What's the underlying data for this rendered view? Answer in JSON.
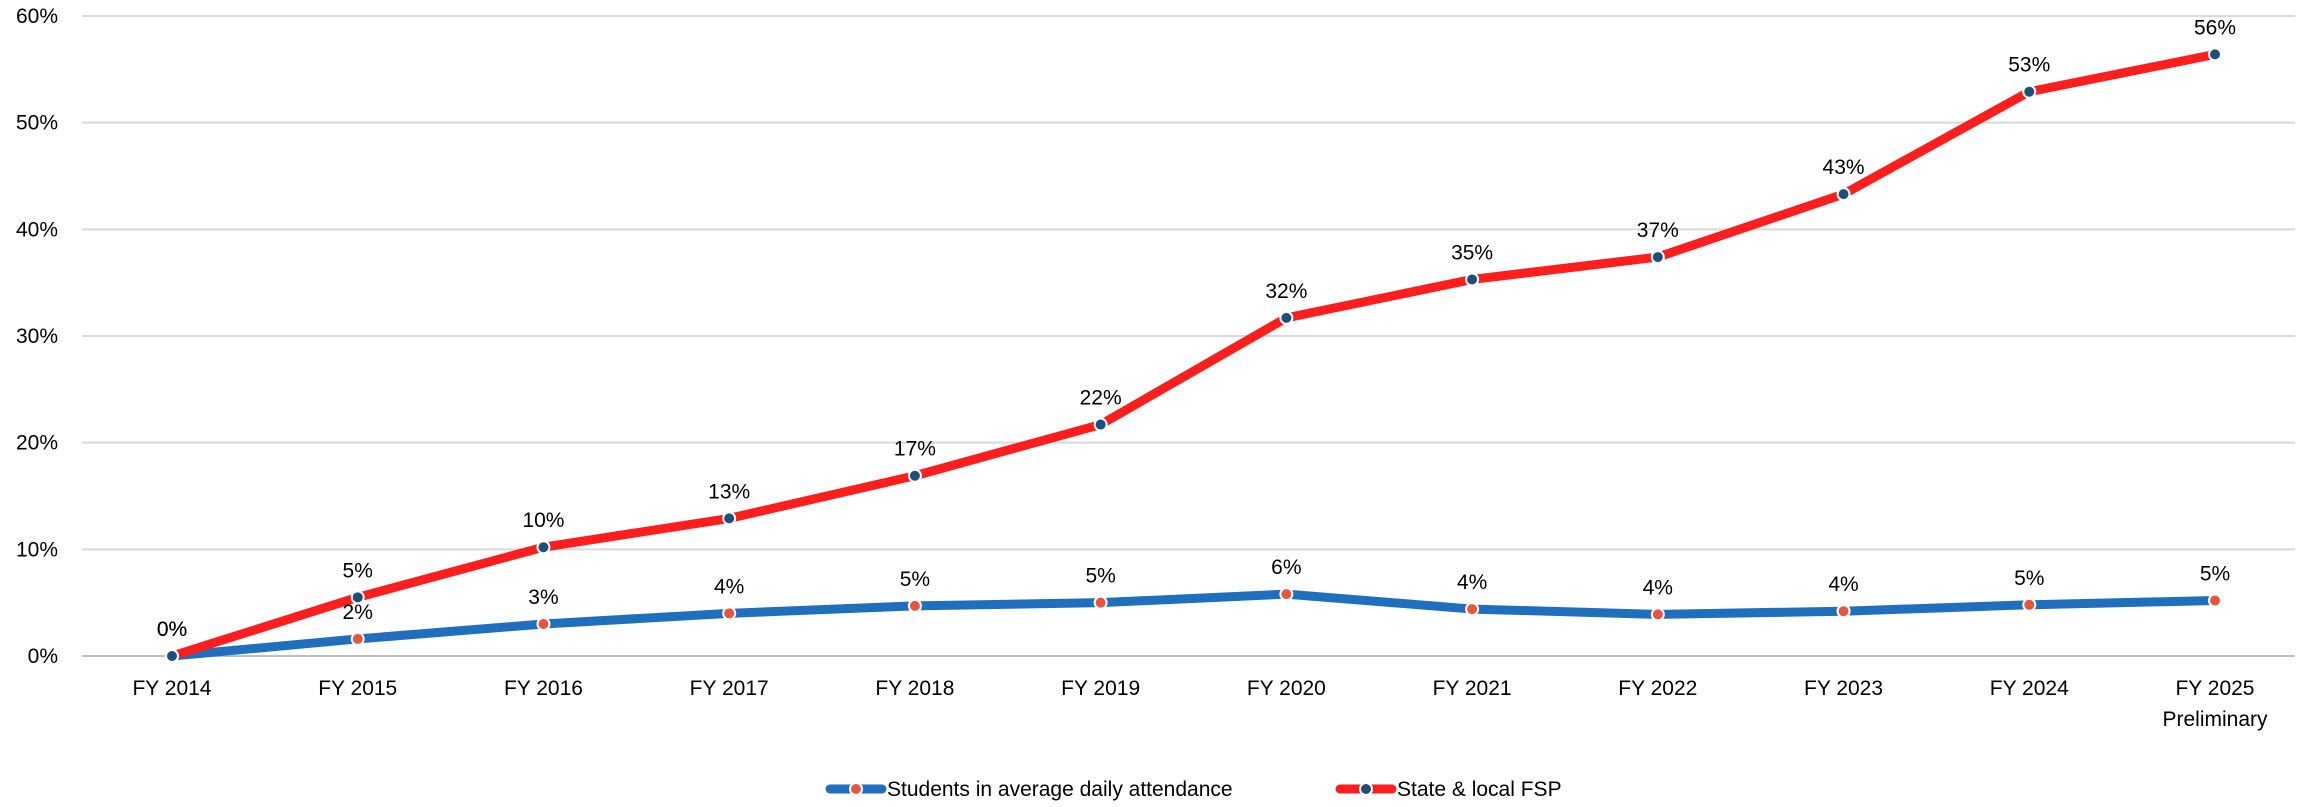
{
  "chart_data": {
    "type": "line",
    "title": "",
    "xlabel": "",
    "ylabel": "",
    "ylim": [
      0,
      60
    ],
    "ytick_labels": [
      "0%",
      "10%",
      "20%",
      "30%",
      "40%",
      "50%",
      "60%"
    ],
    "categories": [
      [
        "FY 2014"
      ],
      [
        "FY 2015"
      ],
      [
        "FY 2016"
      ],
      [
        "FY 2017"
      ],
      [
        "FY 2018"
      ],
      [
        "FY 2019"
      ],
      [
        "FY 2020"
      ],
      [
        "FY 2021"
      ],
      [
        "FY 2022"
      ],
      [
        "FY 2023"
      ],
      [
        "FY 2024"
      ],
      [
        "FY 2025",
        "Preliminary"
      ]
    ],
    "grid": true,
    "legend": "bottom-center",
    "series": [
      {
        "name": "Students in average daily attendance",
        "color": "#1f6fbd",
        "marker_color": "#e8553f",
        "values": [
          0,
          1.6,
          3.0,
          4.0,
          4.7,
          5.0,
          5.8,
          4.4,
          3.9,
          4.2,
          4.8,
          5.2
        ],
        "labels": [
          "0%",
          "2%",
          "3%",
          "4%",
          "5%",
          "5%",
          "6%",
          "4%",
          "4%",
          "4%",
          "5%",
          "5%"
        ]
      },
      {
        "name": "State & local FSP",
        "color": "#ff1e1e",
        "marker_color": "#1f4e79",
        "values": [
          0,
          5.5,
          10.2,
          12.9,
          16.9,
          21.7,
          31.7,
          35.3,
          37.4,
          43.3,
          52.9,
          56.4
        ],
        "labels": [
          "0%",
          "5%",
          "10%",
          "13%",
          "17%",
          "22%",
          "32%",
          "35%",
          "37%",
          "43%",
          "53%",
          "56%"
        ]
      }
    ]
  }
}
